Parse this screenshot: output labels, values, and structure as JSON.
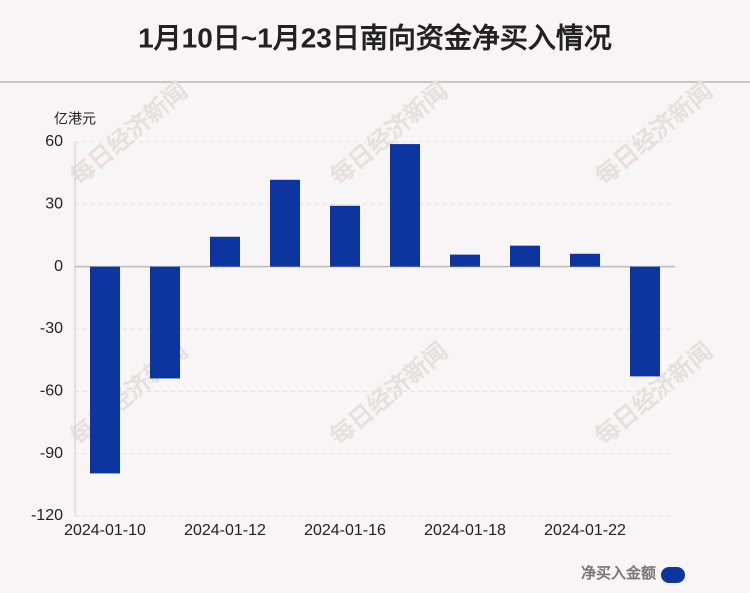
{
  "chart_data": {
    "type": "bar",
    "title": "1月10日~1月23日南向资金净买入情况",
    "unit_label": "亿港元",
    "categories": [
      "2024-01-10",
      null,
      "2024-01-12",
      null,
      "2024-01-16",
      null,
      "2024-01-18",
      null,
      "2024-01-22",
      null
    ],
    "series": [
      {
        "name": "净买入金额",
        "color": "#0d35a0",
        "values": [
          -99.5,
          -53.8,
          14.4,
          41.8,
          29.3,
          59.0,
          5.8,
          10.1,
          6.2,
          -52.8
        ]
      }
    ],
    "ylim": [
      -120,
      60
    ],
    "yticks": [
      -120,
      -90,
      -60,
      -30,
      0,
      30,
      60
    ],
    "grid": true,
    "watermark": "每日经济新闻"
  }
}
